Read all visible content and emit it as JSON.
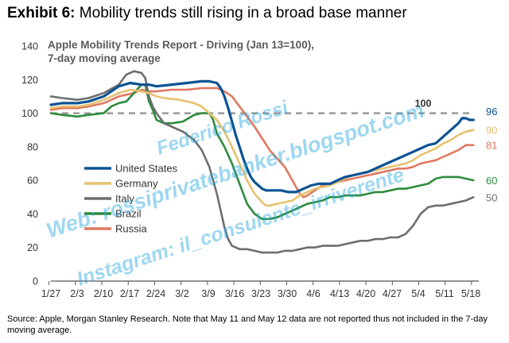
{
  "header": {
    "exhibit_label": "Exhibit 6:",
    "exhibit_title": "Mobility trends still rising in a broad base manner"
  },
  "source_note": "Source: Apple, Morgan Stanley Research. Note that May 11 and May 12 data are not reported thus not included in the 7-day moving average.",
  "watermark": {
    "lines": [
      "Federico Rossi",
      "Web: rossiprivatebanker.blogspot.com",
      "Instagram: il_consulente_irriverente"
    ],
    "color": "#2aa8e0"
  },
  "chart_data": {
    "type": "line",
    "title": "Apple Mobility Trends Report - Driving (Jan 13=100),",
    "subtitle": "7-day moving average",
    "xlabel": "",
    "ylabel": "",
    "ylim": [
      0,
      140
    ],
    "yticks": [
      0,
      20,
      40,
      60,
      80,
      100,
      120,
      140
    ],
    "x_tick_labels": [
      "1/27",
      "2/3",
      "2/10",
      "2/17",
      "2/24",
      "3/2",
      "3/9",
      "3/16",
      "3/23",
      "3/30",
      "4/6",
      "4/13",
      "4/20",
      "4/27",
      "5/4",
      "5/11",
      "5/18"
    ],
    "x_range_days": [
      0,
      113
    ],
    "reference_line": {
      "value": 100,
      "label": "100",
      "color": "#999999"
    },
    "legend_position": "center-left",
    "series": [
      {
        "name": "United States",
        "color": "#0b5394",
        "end_label": "96",
        "points": [
          [
            0,
            105
          ],
          [
            3,
            106
          ],
          [
            7,
            106
          ],
          [
            10,
            107
          ],
          [
            14,
            110
          ],
          [
            18,
            116
          ],
          [
            21,
            118
          ],
          [
            24,
            117
          ],
          [
            26,
            117
          ],
          [
            28,
            116
          ],
          [
            32,
            117
          ],
          [
            36,
            118
          ],
          [
            40,
            119
          ],
          [
            42,
            119
          ],
          [
            44,
            118
          ],
          [
            45,
            115
          ],
          [
            46,
            110
          ],
          [
            47,
            103
          ],
          [
            48,
            95
          ],
          [
            49,
            87
          ],
          [
            50,
            80
          ],
          [
            51,
            73
          ],
          [
            52,
            67
          ],
          [
            53,
            62
          ],
          [
            54,
            59
          ],
          [
            55,
            57
          ],
          [
            56,
            55
          ],
          [
            57,
            54
          ],
          [
            59,
            54
          ],
          [
            61,
            54
          ],
          [
            63,
            53
          ],
          [
            65,
            53
          ],
          [
            67,
            55
          ],
          [
            69,
            57
          ],
          [
            71,
            58
          ],
          [
            72,
            58
          ],
          [
            74,
            58
          ],
          [
            76,
            60
          ],
          [
            78,
            62
          ],
          [
            80,
            63
          ],
          [
            82,
            64
          ],
          [
            84,
            65
          ],
          [
            86,
            67
          ],
          [
            88,
            69
          ],
          [
            90,
            71
          ],
          [
            92,
            73
          ],
          [
            94,
            75
          ],
          [
            96,
            77
          ],
          [
            98,
            79
          ],
          [
            100,
            81
          ],
          [
            102,
            82
          ],
          [
            104,
            86
          ],
          [
            106,
            90
          ],
          [
            108,
            94
          ],
          [
            109,
            97
          ],
          [
            110,
            97
          ],
          [
            111,
            96
          ],
          [
            112,
            96
          ]
        ]
      },
      {
        "name": "Germany",
        "color": "#e6c170",
        "end_label": "90",
        "points": [
          [
            0,
            103
          ],
          [
            3,
            104
          ],
          [
            7,
            104
          ],
          [
            10,
            105
          ],
          [
            14,
            108
          ],
          [
            18,
            112
          ],
          [
            21,
            114
          ],
          [
            24,
            113
          ],
          [
            26,
            112
          ],
          [
            28,
            110
          ],
          [
            30,
            109
          ],
          [
            34,
            108
          ],
          [
            38,
            106
          ],
          [
            40,
            104
          ],
          [
            42,
            100
          ],
          [
            44,
            96
          ],
          [
            46,
            89
          ],
          [
            48,
            80
          ],
          [
            50,
            70
          ],
          [
            52,
            60
          ],
          [
            54,
            52
          ],
          [
            56,
            47
          ],
          [
            57,
            45
          ],
          [
            58,
            45
          ],
          [
            60,
            46
          ],
          [
            62,
            47
          ],
          [
            64,
            48
          ],
          [
            66,
            51
          ],
          [
            68,
            53
          ],
          [
            70,
            55
          ],
          [
            72,
            56
          ],
          [
            74,
            57
          ],
          [
            76,
            59
          ],
          [
            78,
            61
          ],
          [
            80,
            63
          ],
          [
            82,
            64
          ],
          [
            84,
            65
          ],
          [
            86,
            66
          ],
          [
            88,
            67
          ],
          [
            90,
            68
          ],
          [
            92,
            69
          ],
          [
            94,
            70
          ],
          [
            96,
            72
          ],
          [
            98,
            75
          ],
          [
            100,
            77
          ],
          [
            102,
            79
          ],
          [
            104,
            82
          ],
          [
            106,
            84
          ],
          [
            108,
            87
          ],
          [
            110,
            89
          ],
          [
            112,
            90
          ]
        ]
      },
      {
        "name": "Italy",
        "color": "#6e6e6e",
        "end_label": "50",
        "points": [
          [
            0,
            110
          ],
          [
            3,
            109
          ],
          [
            7,
            108
          ],
          [
            10,
            109
          ],
          [
            14,
            112
          ],
          [
            18,
            117
          ],
          [
            20,
            123
          ],
          [
            22,
            125
          ],
          [
            24,
            124
          ],
          [
            25,
            121
          ],
          [
            26,
            110
          ],
          [
            27,
            104
          ],
          [
            28,
            100
          ],
          [
            30,
            94
          ],
          [
            32,
            92
          ],
          [
            35,
            89
          ],
          [
            38,
            84
          ],
          [
            40,
            78
          ],
          [
            42,
            68
          ],
          [
            44,
            52
          ],
          [
            45,
            42
          ],
          [
            46,
            32
          ],
          [
            47,
            25
          ],
          [
            48,
            21
          ],
          [
            50,
            19
          ],
          [
            52,
            19
          ],
          [
            54,
            18
          ],
          [
            56,
            17
          ],
          [
            58,
            17
          ],
          [
            60,
            17
          ],
          [
            62,
            18
          ],
          [
            64,
            18
          ],
          [
            66,
            19
          ],
          [
            68,
            20
          ],
          [
            70,
            20
          ],
          [
            72,
            21
          ],
          [
            74,
            21
          ],
          [
            76,
            21
          ],
          [
            78,
            22
          ],
          [
            80,
            23
          ],
          [
            82,
            24
          ],
          [
            84,
            24
          ],
          [
            86,
            25
          ],
          [
            88,
            25
          ],
          [
            90,
            26
          ],
          [
            92,
            26
          ],
          [
            94,
            28
          ],
          [
            96,
            33
          ],
          [
            98,
            40
          ],
          [
            100,
            44
          ],
          [
            102,
            45
          ],
          [
            104,
            45
          ],
          [
            106,
            46
          ],
          [
            108,
            47
          ],
          [
            110,
            48
          ],
          [
            112,
            50
          ]
        ]
      },
      {
        "name": "Brazil",
        "color": "#2e8b3e",
        "end_label": "60",
        "points": [
          [
            0,
            100
          ],
          [
            3,
            99
          ],
          [
            7,
            98
          ],
          [
            10,
            99
          ],
          [
            14,
            100
          ],
          [
            16,
            104
          ],
          [
            18,
            106
          ],
          [
            20,
            107
          ],
          [
            22,
            112
          ],
          [
            24,
            117
          ],
          [
            25,
            117
          ],
          [
            26,
            107
          ],
          [
            27,
            102
          ],
          [
            28,
            96
          ],
          [
            30,
            94
          ],
          [
            32,
            94
          ],
          [
            35,
            95
          ],
          [
            38,
            99
          ],
          [
            40,
            100
          ],
          [
            42,
            100
          ],
          [
            43,
            96
          ],
          [
            44,
            88
          ],
          [
            46,
            80
          ],
          [
            48,
            70
          ],
          [
            50,
            58
          ],
          [
            52,
            46
          ],
          [
            54,
            40
          ],
          [
            56,
            37
          ],
          [
            58,
            37
          ],
          [
            60,
            38
          ],
          [
            62,
            40
          ],
          [
            64,
            42
          ],
          [
            66,
            44
          ],
          [
            68,
            46
          ],
          [
            70,
            47
          ],
          [
            72,
            48
          ],
          [
            74,
            50
          ],
          [
            76,
            50
          ],
          [
            78,
            51
          ],
          [
            80,
            51
          ],
          [
            82,
            51
          ],
          [
            84,
            52
          ],
          [
            86,
            53
          ],
          [
            88,
            53
          ],
          [
            90,
            54
          ],
          [
            92,
            55
          ],
          [
            94,
            55
          ],
          [
            96,
            56
          ],
          [
            98,
            57
          ],
          [
            100,
            58
          ],
          [
            102,
            61
          ],
          [
            104,
            62
          ],
          [
            106,
            62
          ],
          [
            108,
            62
          ],
          [
            110,
            61
          ],
          [
            112,
            60
          ]
        ]
      },
      {
        "name": "Russia",
        "color": "#e07860",
        "end_label": "81",
        "points": [
          [
            0,
            102
          ],
          [
            3,
            103
          ],
          [
            7,
            103
          ],
          [
            10,
            104
          ],
          [
            14,
            106
          ],
          [
            16,
            108
          ],
          [
            18,
            110
          ],
          [
            20,
            111
          ],
          [
            22,
            112
          ],
          [
            24,
            114
          ],
          [
            26,
            113
          ],
          [
            28,
            113
          ],
          [
            32,
            114
          ],
          [
            36,
            114
          ],
          [
            40,
            115
          ],
          [
            42,
            115
          ],
          [
            44,
            115
          ],
          [
            46,
            113
          ],
          [
            48,
            110
          ],
          [
            50,
            104
          ],
          [
            52,
            98
          ],
          [
            54,
            92
          ],
          [
            56,
            85
          ],
          [
            58,
            78
          ],
          [
            60,
            73
          ],
          [
            62,
            68
          ],
          [
            64,
            60
          ],
          [
            66,
            52
          ],
          [
            67,
            50
          ],
          [
            68,
            51
          ],
          [
            70,
            54
          ],
          [
            72,
            57
          ],
          [
            74,
            58
          ],
          [
            76,
            59
          ],
          [
            78,
            60
          ],
          [
            80,
            61
          ],
          [
            82,
            62
          ],
          [
            84,
            63
          ],
          [
            86,
            64
          ],
          [
            88,
            65
          ],
          [
            90,
            66
          ],
          [
            92,
            67
          ],
          [
            94,
            67
          ],
          [
            96,
            68
          ],
          [
            98,
            70
          ],
          [
            100,
            71
          ],
          [
            102,
            72
          ],
          [
            104,
            74
          ],
          [
            106,
            76
          ],
          [
            108,
            78
          ],
          [
            110,
            81
          ],
          [
            112,
            81
          ]
        ]
      }
    ]
  }
}
